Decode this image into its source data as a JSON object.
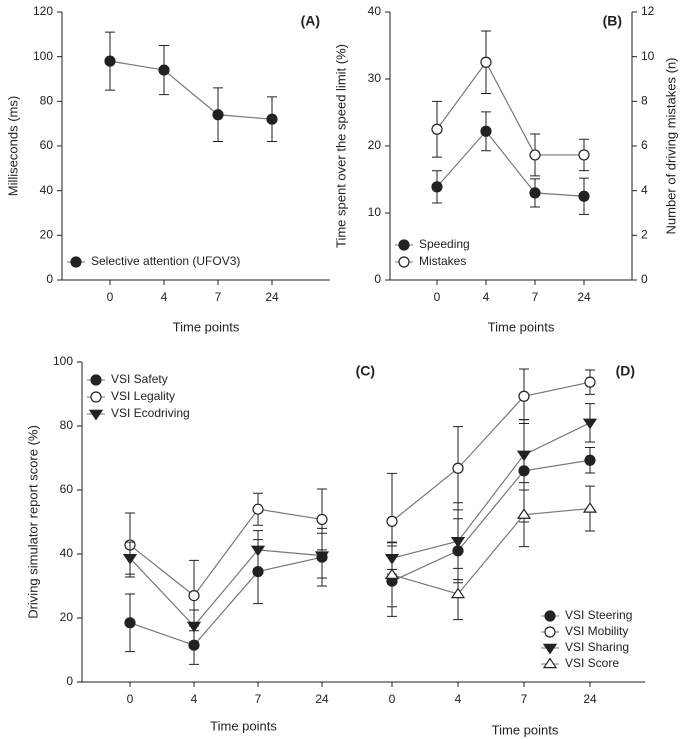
{
  "chart_data": [
    {
      "type": "line",
      "label": "(A)",
      "xlabel": "Time points",
      "ylabel": "Milliseconds (ms)",
      "categories": [
        "0",
        "4",
        "7",
        "24"
      ],
      "ylim": [
        0,
        120
      ],
      "yticks": [
        0,
        20,
        40,
        60,
        80,
        100,
        120
      ],
      "legend": "lower left",
      "series": [
        {
          "name": "Selective attention (UFOV3)",
          "color": "#222222",
          "marker": "circle-filled",
          "values": [
            98,
            94,
            74,
            72
          ],
          "errors": [
            13,
            11,
            12,
            10
          ]
        }
      ]
    },
    {
      "type": "line",
      "label": "(B)",
      "xlabel": "Time points",
      "ylabel": "Time spent over the speed limit (%)",
      "y2label": "Number of driving mistakes (n)",
      "categories": [
        "0",
        "4",
        "7",
        "24"
      ],
      "ylim": [
        0,
        40
      ],
      "yticks": [
        0,
        10,
        20,
        30,
        40
      ],
      "y2lim": [
        0,
        12
      ],
      "y2ticks": [
        0,
        2,
        4,
        6,
        8,
        10,
        12
      ],
      "legend": "lower left",
      "series": [
        {
          "name": "Speeding",
          "color": "#222222",
          "marker": "circle-filled",
          "values": [
            13.9,
            22.2,
            13.0,
            12.5
          ],
          "errors": [
            2.4,
            2.9,
            2.1,
            2.7
          ]
        },
        {
          "name": "Mistakes",
          "color": "#222222",
          "marker": "circle-open",
          "axis": "y2",
          "values": [
            6.75,
            9.75,
            5.6,
            5.6
          ],
          "errors": [
            1.25,
            1.4,
            0.94,
            0.7
          ]
        }
      ]
    },
    {
      "type": "line",
      "label": "(C)",
      "xlabel": "Time points",
      "ylabel": "Driving simulator report score (%)",
      "categories": [
        "0",
        "4",
        "7",
        "24"
      ],
      "ylim": [
        0,
        100
      ],
      "yticks": [
        0,
        20,
        40,
        60,
        80,
        100
      ],
      "legend": "upper left",
      "series": [
        {
          "name": "VSI Safety",
          "color": "#222222",
          "marker": "circle-filled",
          "values": [
            18.5,
            11.5,
            34.5,
            39
          ],
          "errors": [
            9,
            6,
            10,
            9
          ]
        },
        {
          "name": "VSI Legality",
          "color": "#222222",
          "marker": "circle-open",
          "values": [
            42.8,
            27,
            54,
            50.8
          ],
          "errors": [
            10,
            11,
            5,
            9.5
          ]
        },
        {
          "name": "VSI Ecodriving",
          "color": "#222222",
          "marker": "triangle-down-filled",
          "values": [
            38.7,
            17.5,
            41.3,
            39.5
          ],
          "errors": [
            5,
            5,
            6,
            7
          ]
        }
      ]
    },
    {
      "type": "line",
      "label": "(D)",
      "xlabel": "Time points",
      "categories": [
        "0",
        "4",
        "7",
        "24"
      ],
      "ylim": [
        0,
        100
      ],
      "legend": "lower right",
      "series": [
        {
          "name": "VSI Steering",
          "color": "#222222",
          "marker": "circle-filled",
          "values": [
            31.5,
            41,
            66,
            69.3
          ],
          "errors": [
            11,
            10,
            16,
            4
          ]
        },
        {
          "name": "VSI Mobility",
          "color": "#222222",
          "marker": "circle-open",
          "values": [
            50.2,
            66.8,
            89.3,
            93.7
          ],
          "errors": [
            15,
            13,
            8.5,
            3.8
          ]
        },
        {
          "name": "VSI Sharing",
          "color": "#222222",
          "marker": "triangle-down-filled",
          "values": [
            38.7,
            44,
            71,
            81
          ],
          "errors": [
            5,
            12,
            11,
            6
          ]
        },
        {
          "name": "VSI Score",
          "color": "#222222",
          "marker": "triangle-up-open",
          "values": [
            33.5,
            27.5,
            52.3,
            54.2
          ],
          "errors": [
            10,
            8,
            10,
            7
          ]
        }
      ]
    }
  ]
}
